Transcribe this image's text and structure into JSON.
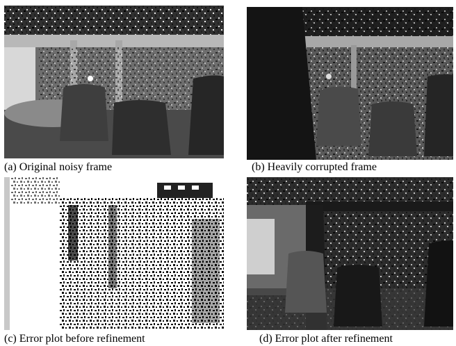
{
  "figure": {
    "panels": [
      {
        "caption": "(a) Original noisy frame"
      },
      {
        "caption": "(b) Heavily corrupted frame"
      },
      {
        "caption": "(c) Error plot before refinement"
      },
      {
        "caption": "(d) Error plot after refinement"
      }
    ]
  }
}
